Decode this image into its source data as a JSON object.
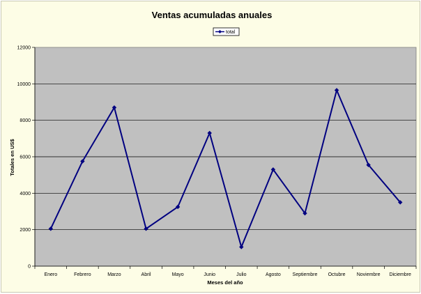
{
  "chart_data": {
    "type": "line",
    "title": "Ventas acumuladas anuales",
    "xlabel": "Meses del año",
    "ylabel": "Totales en US$",
    "categories": [
      "Enero",
      "Febrero",
      "Marzo",
      "Abril",
      "Mayo",
      "Junio",
      "Julio",
      "Agosto",
      "Septiembre",
      "Octubre",
      "Noviembre",
      "Diciembre"
    ],
    "series": [
      {
        "name": "total",
        "values": [
          2050,
          5750,
          8700,
          2050,
          3250,
          7300,
          1050,
          5300,
          2900,
          9650,
          5550,
          3500
        ]
      }
    ],
    "ylim": [
      0,
      12000
    ],
    "yticks": [
      0,
      2000,
      4000,
      6000,
      8000,
      10000,
      12000
    ],
    "grid": true,
    "legend_position": "top-center",
    "colors": {
      "series": "#000080",
      "plot_background": "#c0c0c0",
      "chart_background": "#fdfde6",
      "gridline": "#000000"
    }
  }
}
